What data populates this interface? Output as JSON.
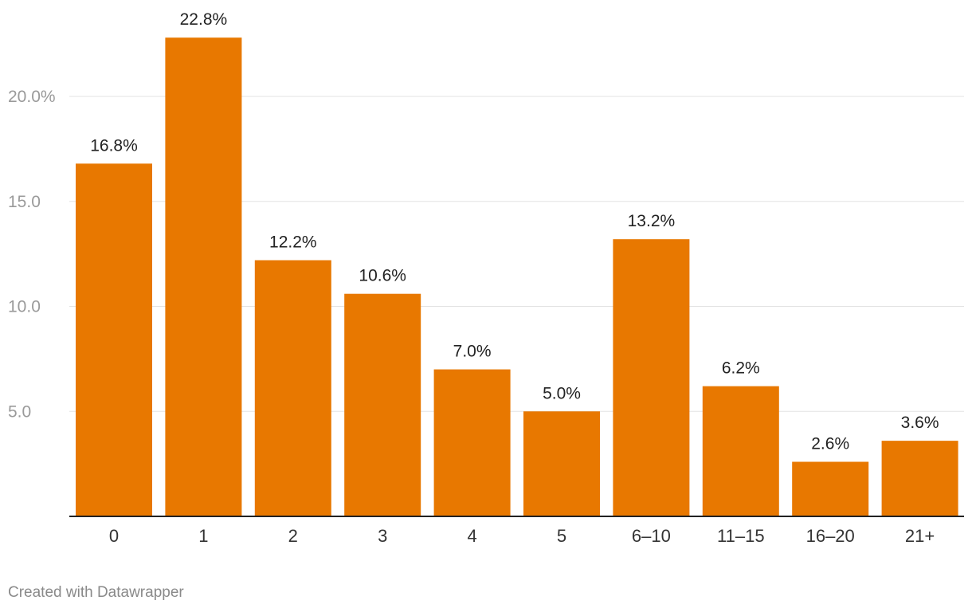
{
  "chart_data": {
    "type": "bar",
    "categories": [
      "0",
      "1",
      "2",
      "3",
      "4",
      "5",
      "6–10",
      "11–15",
      "16–20",
      "21+"
    ],
    "values": [
      16.8,
      22.8,
      12.2,
      10.6,
      7.0,
      5.0,
      13.2,
      6.2,
      2.6,
      3.6
    ],
    "value_labels": [
      "16.8%",
      "22.8%",
      "12.2%",
      "10.6%",
      "7.0%",
      "5.0%",
      "13.2%",
      "6.2%",
      "2.6%",
      "3.6%"
    ],
    "y_ticks": [
      5,
      10,
      15,
      20
    ],
    "y_tick_labels": [
      "5.0",
      "10.0",
      "15.0",
      "20.0%"
    ],
    "ylim": [
      0,
      24
    ],
    "grid": true,
    "bar_color": "#e87800"
  },
  "footer": {
    "credit": "Created with Datawrapper"
  }
}
